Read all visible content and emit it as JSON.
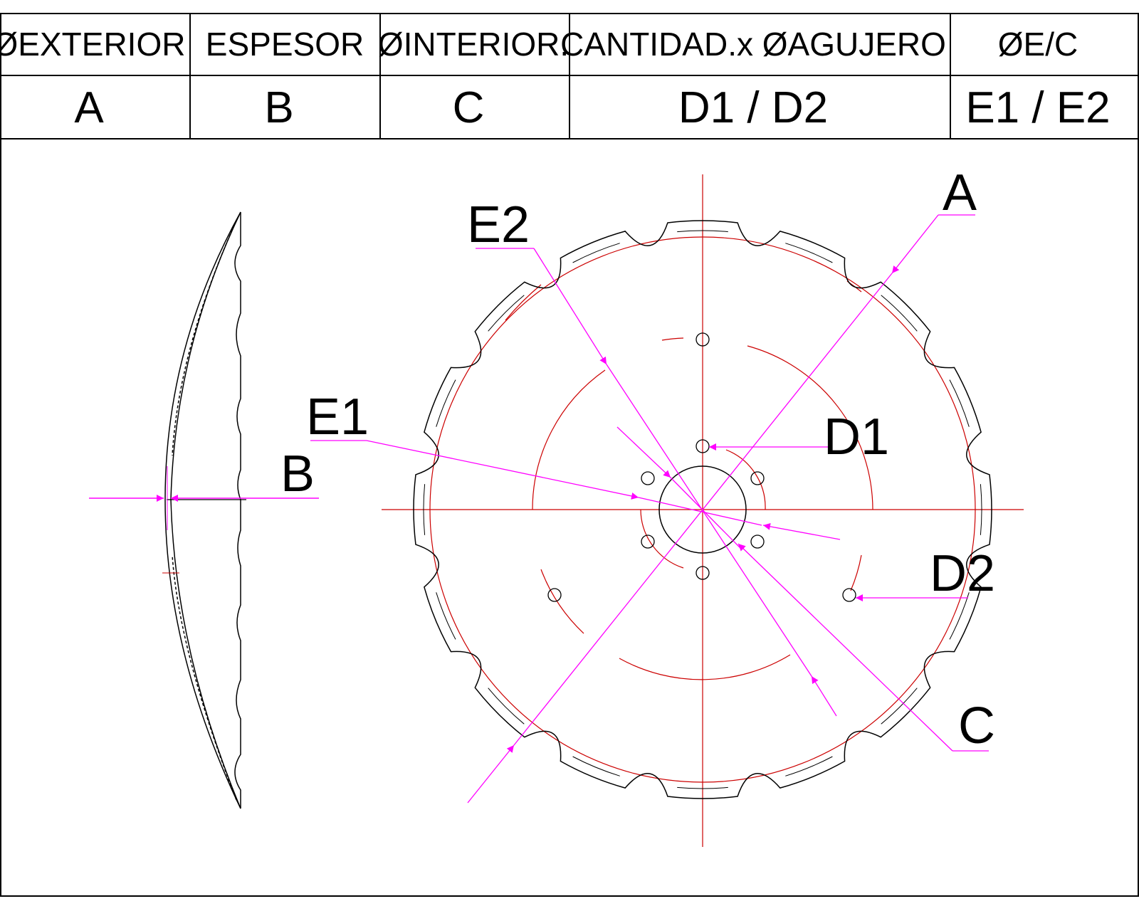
{
  "table": {
    "headers": [
      "ØEXTERIOR",
      "ESPESOR",
      "ØINTERIOR.",
      "CANTIDAD.x ØAGUJERO",
      "ØE/C"
    ],
    "values": [
      "A",
      "B",
      "C",
      "D1 / D2",
      "E1 / E2"
    ]
  },
  "labels": {
    "A": "A",
    "B": "B",
    "C": "C",
    "D1": "D1",
    "D2": "D2",
    "E1": "E1",
    "E2": "E2"
  },
  "colors": {
    "outline": "#000000",
    "centerline": "#cc0000",
    "dimension": "#ff00ff"
  }
}
